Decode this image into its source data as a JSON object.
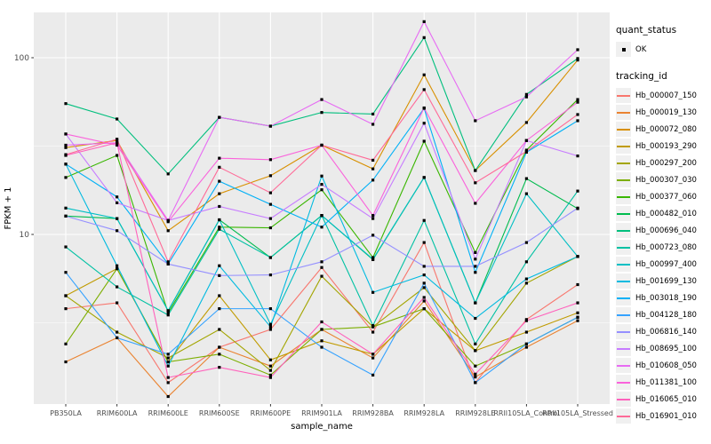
{
  "chart_data": {
    "type": "line",
    "title": "",
    "xlabel": "sample_name",
    "ylabel": "FPKM + 1",
    "y_scale": "log10",
    "y_ticks": [
      100,
      10
    ],
    "y_minor_gridlines": [
      31.6,
      3.16
    ],
    "ylim": [
      1.1,
      185
    ],
    "grid": "on",
    "legend_position": "right",
    "point_shape": "filled-square",
    "point_color": "#000000",
    "panel_bg": "#EBEBEB",
    "grid_color": "#FFFFFF",
    "tick_label_color": "#4D4D4D",
    "categories": [
      "PB350LA",
      "RRIM600LA",
      "RRIM600LE",
      "RRIM600SE",
      "RRIM600PE",
      "RRIM901LA",
      "RRIM928BA",
      "RRIM928LA",
      "RRIM928LE",
      "RRII105LA_Control",
      "RRII105LA_Stressed"
    ],
    "legend": {
      "quant_status_title": "quant_status",
      "ok_label": "OK",
      "tracking_id_title": "tracking_id"
    },
    "series": [
      {
        "name": "Hb_000007_150",
        "color": "#F8766D",
        "values": [
          3.8,
          4.1,
          1.45,
          2.3,
          2.9,
          6.5,
          2.8,
          9.0,
          1.45,
          3.3,
          5.2
        ]
      },
      {
        "name": "Hb_000019_130",
        "color": "#EA8331",
        "values": [
          1.9,
          2.6,
          1.21,
          2.3,
          1.8,
          2.9,
          2.0,
          4.2,
          1.56,
          2.3,
          3.25
        ]
      },
      {
        "name": "Hb_000072_080",
        "color": "#D89000",
        "values": [
          31,
          34,
          10.5,
          17,
          21.5,
          32,
          23.5,
          80,
          23,
          43,
          97
        ]
      },
      {
        "name": "Hb_000193_290",
        "color": "#C09B00",
        "values": [
          4.5,
          6.4,
          1.9,
          4.5,
          1.95,
          2.5,
          2.1,
          3.8,
          2.2,
          2.8,
          3.6
        ]
      },
      {
        "name": "Hb_000297_200",
        "color": "#A3A500",
        "values": [
          4.5,
          2.8,
          2.0,
          2.9,
          1.7,
          5.8,
          3.0,
          5.0,
          2.2,
          5.3,
          7.5
        ]
      },
      {
        "name": "Hb_000307_030",
        "color": "#7CAE00",
        "values": [
          2.4,
          6.4,
          1.9,
          2.1,
          1.6,
          2.9,
          3.0,
          3.8,
          1.8,
          2.4,
          3.4
        ]
      },
      {
        "name": "Hb_000377_060",
        "color": "#39B600",
        "values": [
          21,
          28,
          3.6,
          11,
          10.9,
          17.9,
          7.4,
          33.7,
          7.9,
          30,
          58
        ]
      },
      {
        "name": "Hb_000482_010",
        "color": "#00BB4E",
        "values": [
          12.7,
          12.3,
          3.7,
          12.1,
          7.4,
          12.8,
          7.2,
          21,
          4.1,
          20.7,
          14
        ]
      },
      {
        "name": "Hb_000696_040",
        "color": "#00BF7D",
        "values": [
          55,
          45,
          22,
          46,
          41,
          49,
          48,
          130,
          23,
          62,
          99
        ]
      },
      {
        "name": "Hb_000723_080",
        "color": "#00C1A3",
        "values": [
          8.5,
          5.05,
          3.5,
          10.7,
          7.4,
          12.8,
          3.05,
          12,
          2.4,
          7.0,
          17.6
        ]
      },
      {
        "name": "Hb_000997_400",
        "color": "#00BFC4",
        "values": [
          14.1,
          12.3,
          3.7,
          12.1,
          3.1,
          12.8,
          7.25,
          21,
          4.1,
          17,
          7.5
        ]
      },
      {
        "name": "Hb_001699_130",
        "color": "#00BAE0",
        "values": [
          25,
          6.65,
          1.8,
          6.65,
          3.0,
          21.4,
          4.7,
          5.9,
          3.35,
          5.6,
          7.5
        ]
      },
      {
        "name": "Hb_003018_190",
        "color": "#00B0F6",
        "values": [
          25,
          16.3,
          6.8,
          20,
          14.8,
          11,
          20.3,
          51.7,
          6.1,
          29.2,
          44
        ]
      },
      {
        "name": "Hb_004128_180",
        "color": "#35A2FF",
        "values": [
          6.1,
          2.6,
          2.1,
          3.8,
          3.8,
          2.3,
          1.6,
          5.3,
          1.45,
          2.4,
          3.4
        ]
      },
      {
        "name": "Hb_006816_140",
        "color": "#9590FF",
        "values": [
          12.7,
          10.5,
          6.8,
          5.85,
          5.9,
          7.0,
          9.9,
          6.6,
          6.6,
          9.0,
          14.1
        ]
      },
      {
        "name": "Hb_008695_100",
        "color": "#C77CFF",
        "values": [
          37,
          15.1,
          12,
          14.4,
          12.3,
          19.2,
          12.3,
          42.6,
          7.25,
          34,
          27.8
        ]
      },
      {
        "name": "Hb_010608_050",
        "color": "#E76BF3",
        "values": [
          32,
          33,
          12,
          46,
          41,
          58,
          42,
          160,
          44,
          60,
          111
        ]
      },
      {
        "name": "Hb_011381_100",
        "color": "#FA62DB",
        "values": [
          37,
          32,
          11.8,
          27,
          26.5,
          32,
          12.8,
          52,
          15,
          34,
          56
        ]
      },
      {
        "name": "Hb_016065_010",
        "color": "#FF62BC",
        "values": [
          28,
          33,
          1.55,
          1.77,
          1.55,
          3.2,
          2.1,
          4.4,
          1.62,
          3.25,
          4.1
        ]
      },
      {
        "name": "Hb_016901_010",
        "color": "#FF6A98",
        "values": [
          28.3,
          34.6,
          7.0,
          24,
          17.2,
          32,
          26.3,
          66,
          19.6,
          29.5,
          47.7
        ]
      }
    ]
  }
}
